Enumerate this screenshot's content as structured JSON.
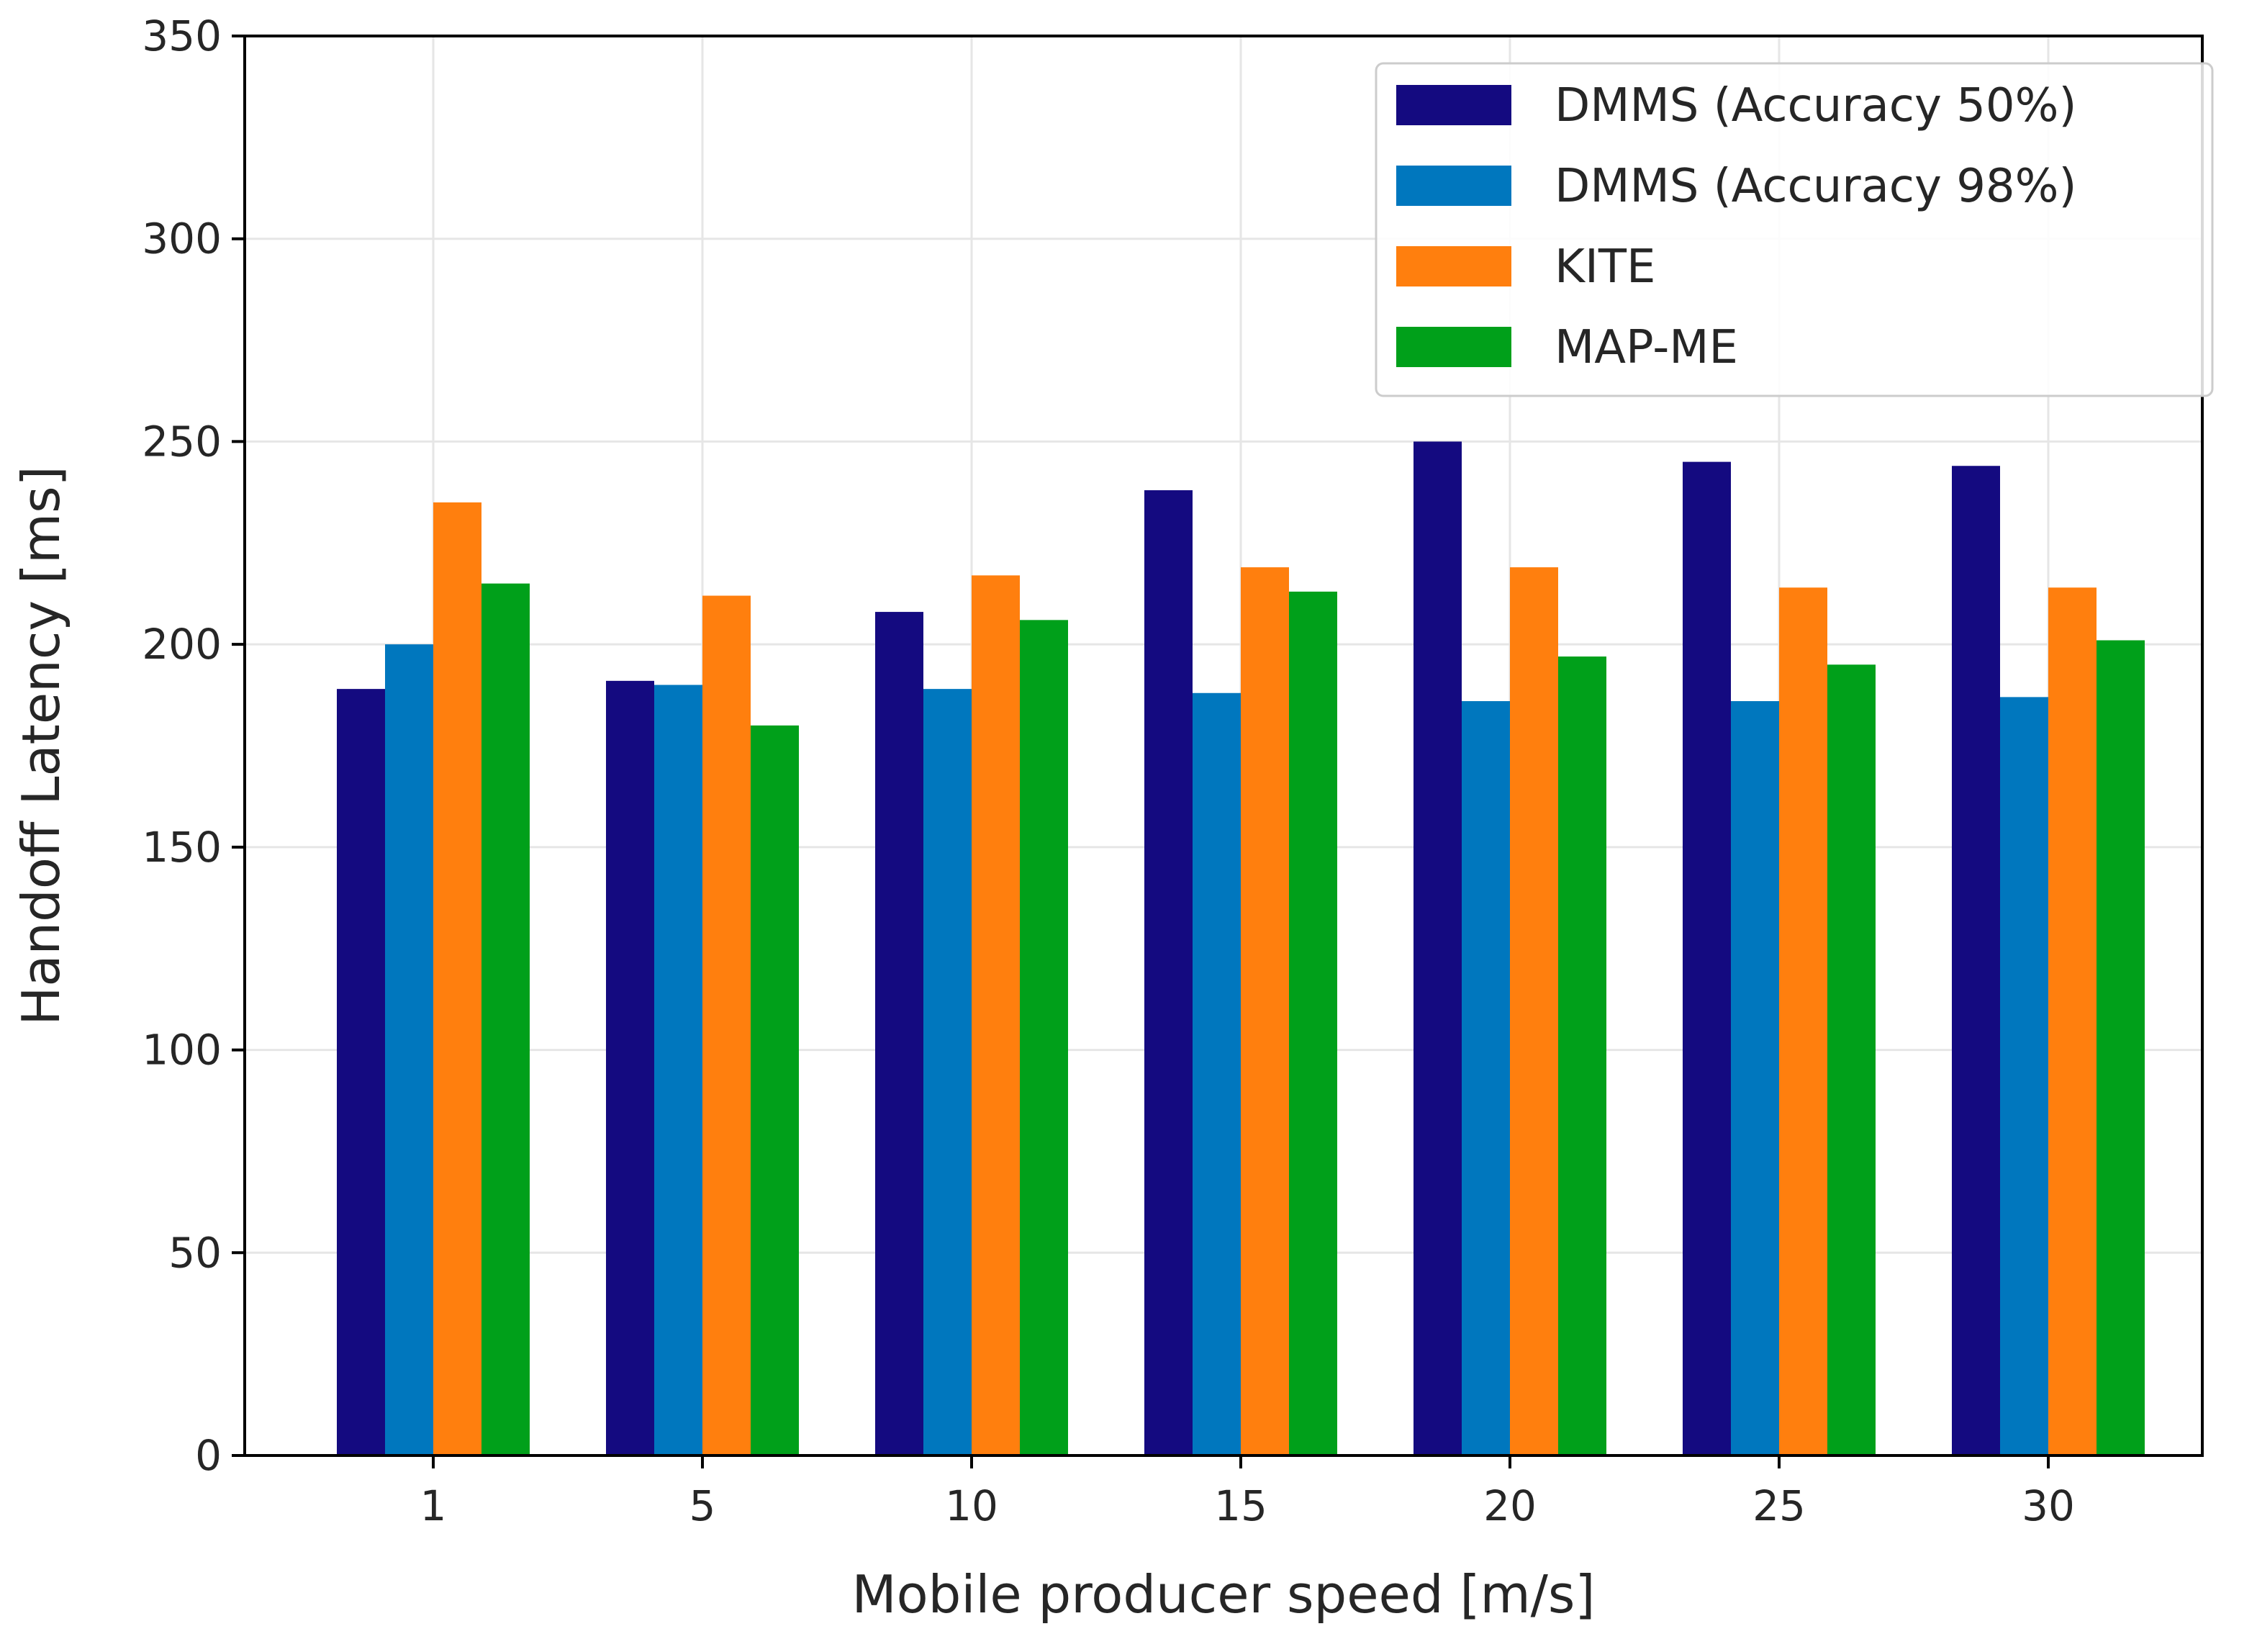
{
  "chart_data": {
    "type": "bar",
    "title": "",
    "xlabel": "Mobile producer speed [m/s]",
    "ylabel": "Handoff Latency [ms]",
    "categories": [
      "1",
      "5",
      "10",
      "15",
      "20",
      "25",
      "30"
    ],
    "ylim": [
      0,
      350
    ],
    "yticks": [
      0,
      50,
      100,
      150,
      200,
      250,
      300,
      350
    ],
    "grid": true,
    "legend_position": "top-right",
    "series": [
      {
        "name": "DMMS (Accuracy 50%)",
        "color": "#140a80",
        "values": [
          189,
          191,
          208,
          238,
          250,
          245,
          244
        ]
      },
      {
        "name": "DMMS (Accuracy 98%)",
        "color": "#0077be",
        "values": [
          200,
          190,
          189,
          188,
          186,
          186,
          187
        ]
      },
      {
        "name": "KITE",
        "color": "#ff7f0e",
        "values": [
          235,
          212,
          217,
          219,
          219,
          214,
          214
        ]
      },
      {
        "name": "MAP-ME",
        "color": "#00a01a",
        "values": [
          215,
          180,
          206,
          213,
          197,
          195,
          201
        ]
      }
    ]
  }
}
